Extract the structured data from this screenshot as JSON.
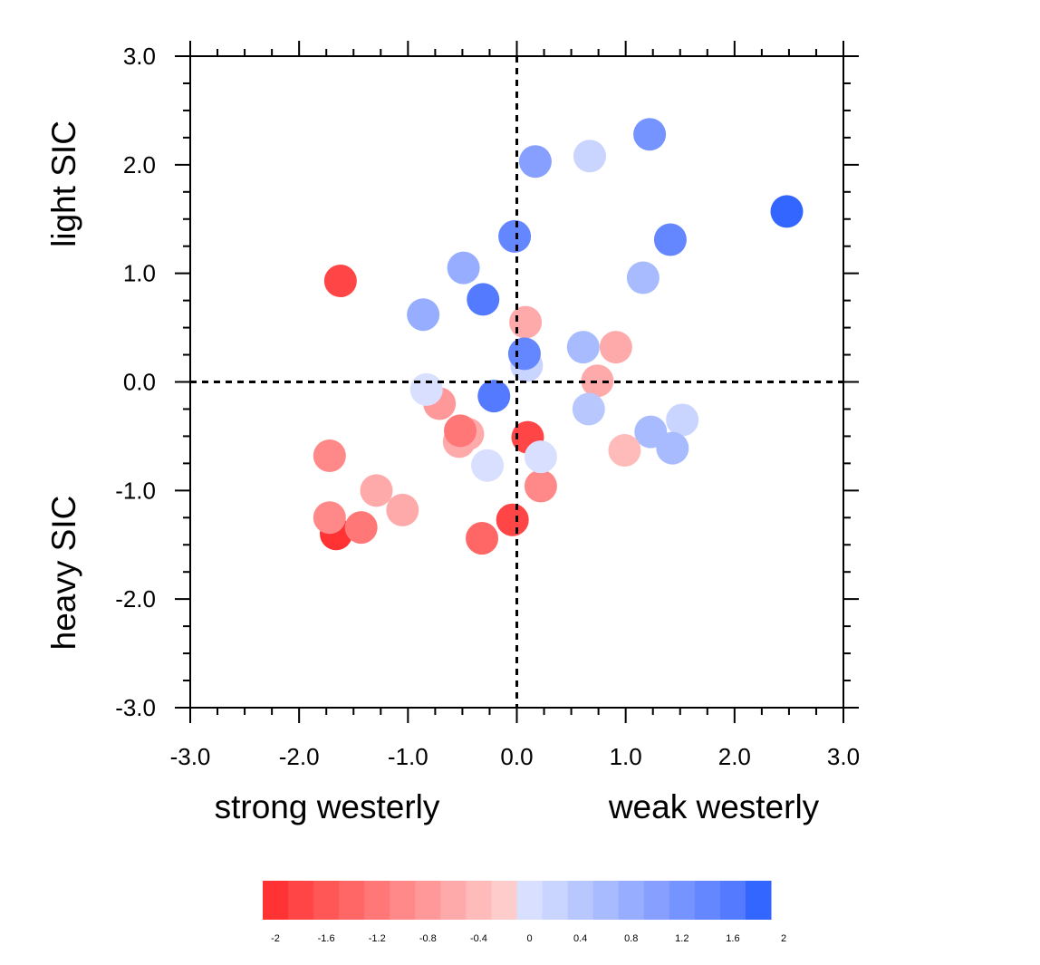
{
  "chart_data": {
    "type": "scatter",
    "title": "",
    "xlim": [
      -3,
      3
    ],
    "ylim": [
      -3,
      3
    ],
    "xticks": [
      "-3.0",
      "-2.0",
      "-1.0",
      "0.0",
      "1.0",
      "2.0",
      "3.0"
    ],
    "yticks": [
      "-3.0",
      "-2.0",
      "-1.0",
      "0.0",
      "1.0",
      "2.0",
      "3.0"
    ],
    "xlabel_left": "strong westerly",
    "xlabel_right": "weak westerly",
    "ylabel_top": "light SIC",
    "ylabel_bottom": "heavy SIC",
    "reference_lines": {
      "x": 0,
      "y": 0,
      "style": "dashed"
    },
    "colorbar": {
      "range": [
        -2,
        2
      ],
      "labels": [
        "-2",
        "-1.6",
        "-1.2",
        "-0.8",
        "-0.4",
        "0",
        "0.4",
        "0.8",
        "1.2",
        "1.6",
        "2"
      ],
      "colors": [
        "#ff3333",
        "#ff4545",
        "#ff5656",
        "#ff6767",
        "#ff7777",
        "#ff8888",
        "#ff9999",
        "#ffaaaa",
        "#ffbaba",
        "#ffcccc",
        "#d9e0ff",
        "#c9d4ff",
        "#b8c8ff",
        "#a8bbff",
        "#97adff",
        "#87a0ff",
        "#7694ff",
        "#6487ff",
        "#537aff",
        "#3366ff"
      ]
    },
    "points": [
      {
        "x": 2.48,
        "y": 1.57,
        "v": 2.0
      },
      {
        "x": 1.22,
        "y": 2.28,
        "v": 1.3
      },
      {
        "x": 0.67,
        "y": 2.08,
        "v": 0.3
      },
      {
        "x": 0.17,
        "y": 2.03,
        "v": 1.1
      },
      {
        "x": 1.41,
        "y": 1.31,
        "v": 1.5
      },
      {
        "x": -0.02,
        "y": 1.34,
        "v": 1.5
      },
      {
        "x": 1.16,
        "y": 0.96,
        "v": 0.7
      },
      {
        "x": -0.49,
        "y": 1.05,
        "v": 0.9
      },
      {
        "x": -1.62,
        "y": 0.93,
        "v": -1.6
      },
      {
        "x": -0.31,
        "y": 0.76,
        "v": 1.6
      },
      {
        "x": -0.86,
        "y": 0.62,
        "v": 0.8
      },
      {
        "x": 0.08,
        "y": 0.55,
        "v": -0.5
      },
      {
        "x": 0.61,
        "y": 0.32,
        "v": 0.7
      },
      {
        "x": 0.91,
        "y": 0.32,
        "v": -0.6
      },
      {
        "x": 0.09,
        "y": 0.15,
        "v": 0.2
      },
      {
        "x": 0.07,
        "y": 0.26,
        "v": 1.4
      },
      {
        "x": 0.74,
        "y": 0.01,
        "v": -0.6
      },
      {
        "x": -0.71,
        "y": -0.2,
        "v": -0.8
      },
      {
        "x": -0.83,
        "y": -0.07,
        "v": 0.1
      },
      {
        "x": -0.21,
        "y": -0.13,
        "v": 1.6
      },
      {
        "x": 0.66,
        "y": -0.25,
        "v": 0.4
      },
      {
        "x": -0.45,
        "y": -0.48,
        "v": -0.6
      },
      {
        "x": -0.53,
        "y": -0.55,
        "v": -0.6
      },
      {
        "x": -0.52,
        "y": -0.45,
        "v": -1.1
      },
      {
        "x": 0.1,
        "y": -0.51,
        "v": -1.6
      },
      {
        "x": 1.23,
        "y": -0.46,
        "v": 0.6
      },
      {
        "x": 1.52,
        "y": -0.35,
        "v": 0.3
      },
      {
        "x": 1.43,
        "y": -0.61,
        "v": 0.6
      },
      {
        "x": 0.99,
        "y": -0.63,
        "v": -0.4
      },
      {
        "x": 0.22,
        "y": -0.96,
        "v": -1.0
      },
      {
        "x": 0.22,
        "y": -0.69,
        "v": 0.1
      },
      {
        "x": -0.27,
        "y": -0.77,
        "v": 0.1
      },
      {
        "x": -1.72,
        "y": -0.68,
        "v": -0.9
      },
      {
        "x": -1.29,
        "y": -1.0,
        "v": -0.6
      },
      {
        "x": -1.05,
        "y": -1.18,
        "v": -0.6
      },
      {
        "x": -1.66,
        "y": -1.4,
        "v": -1.8
      },
      {
        "x": -1.43,
        "y": -1.34,
        "v": -1.1
      },
      {
        "x": -1.72,
        "y": -1.25,
        "v": -0.9
      },
      {
        "x": -0.04,
        "y": -1.27,
        "v": -1.6
      },
      {
        "x": -0.32,
        "y": -1.44,
        "v": -1.3
      }
    ]
  }
}
